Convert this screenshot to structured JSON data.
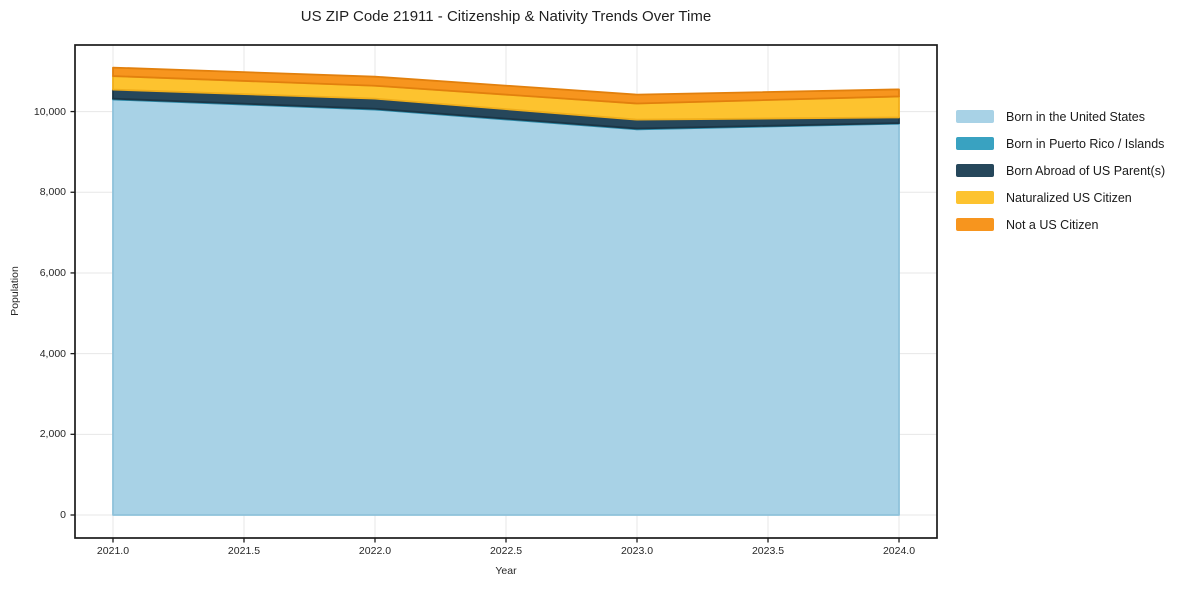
{
  "chart": {
    "title": "US ZIP Code 21911 - Citizenship & Nativity Trends Over Time",
    "xlabel": "Year",
    "ylabel": "Population"
  },
  "chart_data": {
    "type": "area",
    "stacked": true,
    "title": "US ZIP Code 21911 - Citizenship & Nativity Trends Over Time",
    "xlabel": "Year",
    "ylabel": "Population",
    "x": [
      2021,
      2022,
      2023,
      2024
    ],
    "series": [
      {
        "name": "Born in the United States",
        "color": "#a8d2e6",
        "edge": "#8fc2da",
        "values": [
          10300,
          10050,
          9560,
          9700
        ]
      },
      {
        "name": "Born in Puerto Rico / Islands",
        "color": "#39a2c1",
        "edge": "#2d8aa8",
        "values": [
          20,
          20,
          20,
          15
        ]
      },
      {
        "name": "Born Abroad of US Parent(s)",
        "color": "#26475b",
        "edge": "#1b3646",
        "values": [
          225,
          250,
          220,
          140
        ]
      },
      {
        "name": "Naturalized US Citizen",
        "color": "#fdc32f",
        "edge": "#f0ae1b",
        "values": [
          335,
          320,
          400,
          520
        ]
      },
      {
        "name": "Not a US Citizen",
        "color": "#f7951e",
        "edge": "#e2800d",
        "values": [
          210,
          225,
          220,
          175
        ]
      }
    ],
    "totals": [
      11090,
      10865,
      10420,
      10550
    ],
    "xticks": {
      "values": [
        2021,
        2021.5,
        2022,
        2022.5,
        2023,
        2023.5,
        2024
      ],
      "labels": [
        "2021.0",
        "2021.5",
        "2022.0",
        "2022.5",
        "2023.0",
        "2023.5",
        "2024.0"
      ]
    },
    "yticks": {
      "values": [
        0,
        2000,
        4000,
        6000,
        8000,
        10000
      ],
      "labels": [
        "0",
        "2,000",
        "4,000",
        "6,000",
        "8,000",
        "10,000"
      ]
    },
    "xlim": [
      2020.855,
      2024.145
    ],
    "ylim": [
      -570,
      11650
    ],
    "grid": true,
    "grid_color": "#e7e7e7",
    "axis_color": "#1a1a1a",
    "background": "#ffffff",
    "legend_position": "right"
  }
}
